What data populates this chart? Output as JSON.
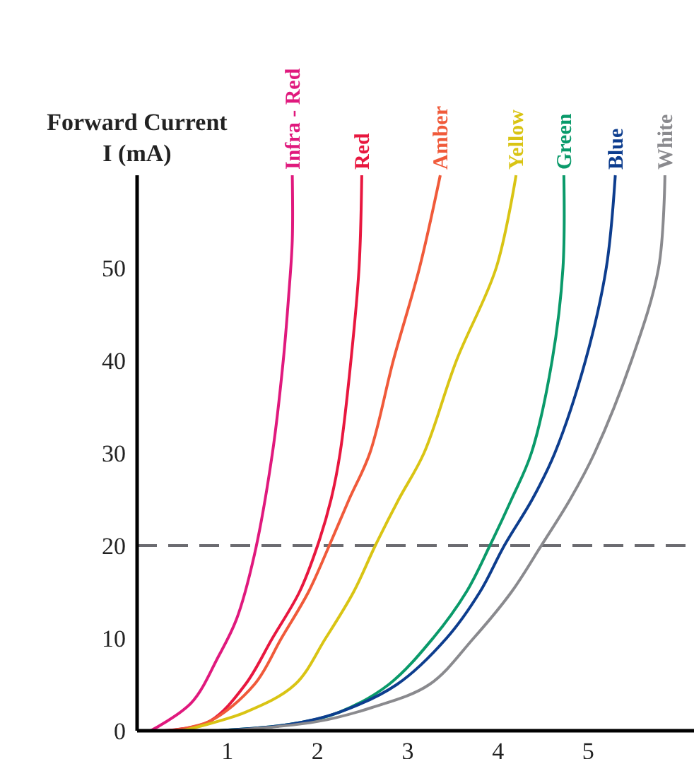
{
  "chart_data": {
    "type": "line",
    "ylabel": "Forward Current\nI (mA)",
    "xlim": [
      0,
      6
    ],
    "ylim": [
      0,
      60
    ],
    "xticks": [
      1,
      2,
      3,
      4,
      5
    ],
    "yticks": [
      0,
      10,
      20,
      30,
      40,
      50
    ],
    "ref_lines": [
      {
        "axis": "y",
        "value": 20,
        "color": "#6b6b70",
        "line_style": "dashed"
      }
    ],
    "series": [
      {
        "name": "Infra - Red",
        "color": "#e0197d",
        "x": [
          0.15,
          0.6,
          0.9,
          1.1,
          1.3,
          1.5,
          1.62,
          1.68,
          1.72,
          1.72
        ],
        "values": [
          0,
          3,
          8,
          12,
          19,
          30,
          40,
          47,
          53,
          60
        ]
      },
      {
        "name": "Red",
        "color": "#e8173f",
        "x": [
          0.3,
          0.8,
          1.2,
          1.5,
          1.8,
          2.0,
          2.15,
          2.25,
          2.37,
          2.46,
          2.49
        ],
        "values": [
          0,
          1,
          5,
          10,
          15,
          20,
          25,
          30,
          40,
          50,
          60
        ]
      },
      {
        "name": "Amber",
        "color": "#f05a3a",
        "x": [
          0.35,
          0.8,
          1.3,
          1.6,
          1.9,
          2.13,
          2.35,
          2.58,
          2.84,
          3.13,
          3.36
        ],
        "values": [
          0,
          1,
          5,
          10,
          15,
          20,
          25,
          30,
          40,
          50,
          60
        ]
      },
      {
        "name": "Yellow",
        "color": "#d9c414",
        "x": [
          0.5,
          1.2,
          1.75,
          2.09,
          2.4,
          2.64,
          2.9,
          3.18,
          3.54,
          3.98,
          4.2
        ],
        "values": [
          0,
          2,
          5,
          10,
          15,
          20,
          25,
          30,
          40,
          50,
          60
        ]
      },
      {
        "name": "Green",
        "color": "#0a9a6a",
        "x": [
          0.9,
          1.7,
          2.24,
          2.79,
          3.28,
          3.65,
          3.91,
          4.15,
          4.37,
          4.6,
          4.72,
          4.73
        ],
        "values": [
          0,
          0.7,
          2,
          5,
          10,
          15,
          20,
          25,
          30,
          40,
          50,
          60
        ]
      },
      {
        "name": "Blue",
        "color": "#0d3d8e",
        "x": [
          0.9,
          1.7,
          2.24,
          2.88,
          3.43,
          3.8,
          4.07,
          4.38,
          4.63,
          4.97,
          5.2,
          5.3
        ],
        "values": [
          0,
          0.7,
          2,
          5,
          10,
          15,
          20,
          25,
          30,
          40,
          50,
          60
        ]
      },
      {
        "name": "White",
        "color": "#8a8a8e",
        "x": [
          1.0,
          2.0,
          2.6,
          3.24,
          3.73,
          4.15,
          4.48,
          4.8,
          5.07,
          5.48,
          5.78,
          5.85
        ],
        "values": [
          0,
          1,
          2.5,
          5,
          10,
          15,
          20,
          25,
          30,
          40,
          50,
          60
        ]
      }
    ]
  }
}
